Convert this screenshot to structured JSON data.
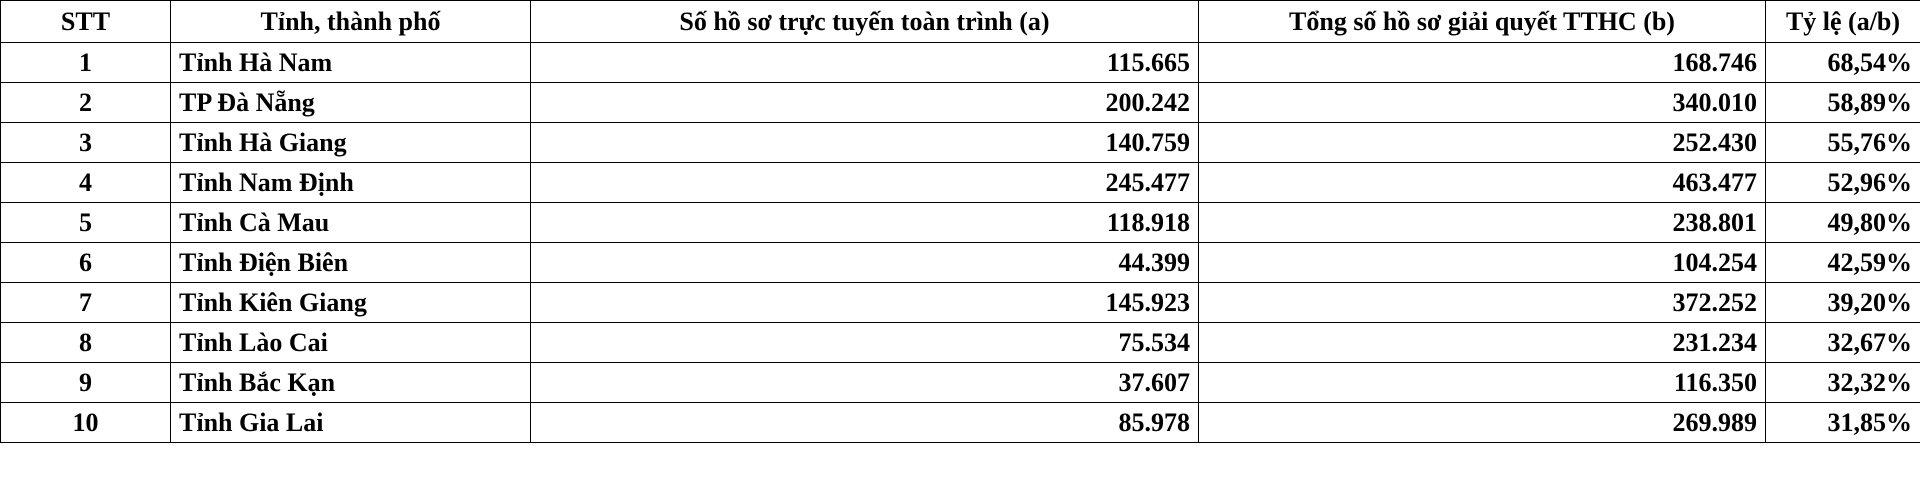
{
  "table": {
    "headers": {
      "stt": "STT",
      "province": "Tỉnh, thành phố",
      "online": "Số hồ sơ trực tuyến toàn trình (a)",
      "total": "Tổng số hồ sơ giải quyết TTHC (b)",
      "ratio": "Tỷ lệ (a/b)"
    },
    "rows": [
      {
        "stt": "1",
        "province": "Tỉnh Hà Nam",
        "online": "115.665",
        "total": "168.746",
        "ratio": "68,54%"
      },
      {
        "stt": "2",
        "province": "TP Đà Nẵng",
        "online": "200.242",
        "total": "340.010",
        "ratio": "58,89%"
      },
      {
        "stt": "3",
        "province": "Tỉnh Hà Giang",
        "online": "140.759",
        "total": "252.430",
        "ratio": "55,76%"
      },
      {
        "stt": "4",
        "province": "Tỉnh Nam Định",
        "online": "245.477",
        "total": "463.477",
        "ratio": "52,96%"
      },
      {
        "stt": "5",
        "province": "Tỉnh Cà Mau",
        "online": "118.918",
        "total": "238.801",
        "ratio": "49,80%"
      },
      {
        "stt": "6",
        "province": "Tỉnh Điện Biên",
        "online": "44.399",
        "total": "104.254",
        "ratio": "42,59%"
      },
      {
        "stt": "7",
        "province": "Tỉnh Kiên Giang",
        "online": "145.923",
        "total": "372.252",
        "ratio": "39,20%"
      },
      {
        "stt": "8",
        "province": "Tỉnh Lào Cai",
        "online": "75.534",
        "total": "231.234",
        "ratio": "32,67%"
      },
      {
        "stt": "9",
        "province": "Tỉnh Bắc Kạn",
        "online": "37.607",
        "total": "116.350",
        "ratio": "32,32%"
      },
      {
        "stt": "10",
        "province": "Tỉnh Gia Lai",
        "online": "85.978",
        "total": "269.989",
        "ratio": "31,85%"
      }
    ]
  }
}
